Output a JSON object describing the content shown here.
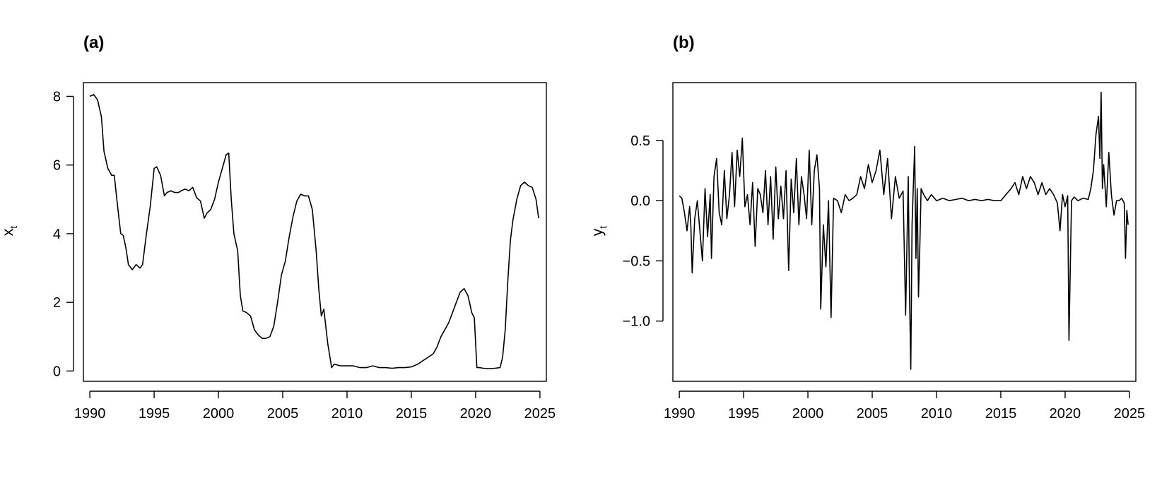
{
  "chart_data": [
    {
      "type": "line",
      "panel_label": "(a)",
      "ylabel": "x",
      "ylabel_subscript": "t",
      "xlim": [
        1989.5,
        2025.5
      ],
      "ylim": [
        -0.3,
        8.4
      ],
      "x_ticks": [
        1990,
        1995,
        2000,
        2005,
        2010,
        2015,
        2020,
        2025
      ],
      "y_ticks": [
        0,
        2,
        4,
        6,
        8
      ],
      "x_tick_labels": [
        "1990",
        "1995",
        "2000",
        "2005",
        "2010",
        "2015",
        "2020",
        "2025"
      ],
      "y_tick_labels": [
        "0",
        "2",
        "4",
        "6",
        "8"
      ],
      "grid": false,
      "line_color": "#000000",
      "series": [
        {
          "x": [
            1990.0,
            1990.3,
            1990.6,
            1990.9,
            1991.1,
            1991.4,
            1991.7,
            1991.9,
            1992.1,
            1992.4,
            1992.6,
            1992.8,
            1993.0,
            1993.3,
            1993.6,
            1993.9,
            1994.1,
            1994.4,
            1994.7,
            1995.0,
            1995.2,
            1995.5,
            1995.8,
            1996.0,
            1996.3,
            1996.6,
            1996.9,
            1997.1,
            1997.4,
            1997.7,
            1998.0,
            1998.3,
            1998.6,
            1998.9,
            1999.1,
            1999.4,
            1999.7,
            2000.0,
            2000.3,
            2000.6,
            2000.8,
            2001.0,
            2001.2,
            2001.5,
            2001.7,
            2001.9,
            2002.2,
            2002.5,
            2002.8,
            2003.1,
            2003.4,
            2003.7,
            2004.0,
            2004.3,
            2004.6,
            2004.9,
            2005.2,
            2005.5,
            2005.8,
            2006.1,
            2006.4,
            2006.7,
            2007.0,
            2007.3,
            2007.6,
            2007.8,
            2008.0,
            2008.2,
            2008.5,
            2008.8,
            2009.0,
            2009.5,
            2010.0,
            2010.5,
            2011.0,
            2011.5,
            2012.0,
            2012.5,
            2013.0,
            2013.5,
            2014.0,
            2014.5,
            2015.0,
            2015.5,
            2015.9,
            2016.3,
            2016.7,
            2017.0,
            2017.3,
            2017.6,
            2017.9,
            2018.2,
            2018.5,
            2018.8,
            2019.1,
            2019.4,
            2019.7,
            2019.9,
            2020.1,
            2020.3,
            2020.6,
            2021.0,
            2021.5,
            2021.9,
            2022.1,
            2022.3,
            2022.5,
            2022.7,
            2022.9,
            2023.2,
            2023.5,
            2023.8,
            2024.1,
            2024.4,
            2024.7,
            2024.9
          ],
          "y": [
            8.0,
            8.05,
            7.9,
            7.4,
            6.4,
            5.9,
            5.7,
            5.7,
            5.0,
            4.0,
            3.95,
            3.6,
            3.1,
            2.95,
            3.1,
            3.0,
            3.1,
            4.0,
            4.8,
            5.9,
            5.95,
            5.7,
            5.1,
            5.2,
            5.25,
            5.2,
            5.2,
            5.25,
            5.3,
            5.25,
            5.35,
            5.05,
            4.95,
            4.45,
            4.6,
            4.7,
            5.0,
            5.5,
            5.9,
            6.3,
            6.35,
            5.0,
            4.0,
            3.5,
            2.2,
            1.75,
            1.7,
            1.6,
            1.2,
            1.05,
            0.95,
            0.95,
            1.0,
            1.3,
            2.0,
            2.8,
            3.2,
            3.9,
            4.5,
            4.95,
            5.15,
            5.1,
            5.1,
            4.7,
            3.5,
            2.4,
            1.6,
            1.8,
            0.8,
            0.1,
            0.2,
            0.15,
            0.15,
            0.15,
            0.1,
            0.1,
            0.15,
            0.1,
            0.1,
            0.08,
            0.1,
            0.1,
            0.12,
            0.2,
            0.3,
            0.4,
            0.5,
            0.7,
            1.0,
            1.2,
            1.4,
            1.7,
            2.0,
            2.3,
            2.4,
            2.2,
            1.7,
            1.55,
            0.1,
            0.1,
            0.08,
            0.07,
            0.08,
            0.1,
            0.4,
            1.2,
            2.6,
            3.8,
            4.4,
            5.0,
            5.4,
            5.5,
            5.4,
            5.35,
            5.0,
            4.45
          ]
        }
      ]
    },
    {
      "type": "line",
      "panel_label": "(b)",
      "ylabel": "y",
      "ylabel_subscript": "t",
      "xlim": [
        1989.5,
        2025.5
      ],
      "ylim": [
        -1.5,
        0.98
      ],
      "x_ticks": [
        1990,
        1995,
        2000,
        2005,
        2010,
        2015,
        2020,
        2025
      ],
      "y_ticks": [
        -1.0,
        -0.5,
        0.0,
        0.5
      ],
      "x_tick_labels": [
        "1990",
        "1995",
        "2000",
        "2005",
        "2010",
        "2015",
        "2020",
        "2025"
      ],
      "y_tick_labels": [
        "−1.0",
        "−0.5",
        "0.0",
        "0.5"
      ],
      "grid": false,
      "line_color": "#000000",
      "series": [
        {
          "x": [
            1990.0,
            1990.2,
            1990.4,
            1990.6,
            1990.8,
            1990.9,
            1991.0,
            1991.2,
            1991.4,
            1991.6,
            1991.8,
            1992.0,
            1992.2,
            1992.4,
            1992.5,
            1992.7,
            1992.9,
            1993.1,
            1993.3,
            1993.5,
            1993.7,
            1993.9,
            1994.1,
            1994.3,
            1994.5,
            1994.7,
            1994.9,
            1995.1,
            1995.3,
            1995.5,
            1995.7,
            1995.9,
            1996.1,
            1996.3,
            1996.5,
            1996.7,
            1996.9,
            1997.1,
            1997.3,
            1997.5,
            1997.7,
            1997.9,
            1998.1,
            1998.3,
            1998.5,
            1998.7,
            1998.9,
            1999.1,
            1999.3,
            1999.5,
            1999.7,
            1999.9,
            2000.1,
            2000.3,
            2000.5,
            2000.7,
            2000.9,
            2001.0,
            2001.2,
            2001.4,
            2001.6,
            2001.8,
            2002.0,
            2002.3,
            2002.6,
            2002.9,
            2003.2,
            2003.5,
            2003.8,
            2004.1,
            2004.4,
            2004.7,
            2005.0,
            2005.3,
            2005.6,
            2005.9,
            2006.2,
            2006.5,
            2006.8,
            2007.1,
            2007.4,
            2007.6,
            2007.8,
            2007.9,
            2008.0,
            2008.1,
            2008.3,
            2008.4,
            2008.5,
            2008.6,
            2008.7,
            2008.8,
            2009.0,
            2009.3,
            2009.6,
            2010.0,
            2010.5,
            2011.0,
            2011.5,
            2012.0,
            2012.5,
            2013.0,
            2013.5,
            2014.0,
            2014.5,
            2015.0,
            2015.4,
            2015.8,
            2016.1,
            2016.4,
            2016.7,
            2017.0,
            2017.3,
            2017.6,
            2017.9,
            2018.2,
            2018.5,
            2018.8,
            2019.1,
            2019.4,
            2019.6,
            2019.8,
            2020.0,
            2020.2,
            2020.3,
            2020.5,
            2020.7,
            2021.0,
            2021.4,
            2021.8,
            2022.0,
            2022.2,
            2022.4,
            2022.6,
            2022.7,
            2022.8,
            2022.9,
            2023.0,
            2023.2,
            2023.4,
            2023.6,
            2023.8,
            2024.0,
            2024.2,
            2024.4,
            2024.6,
            2024.7,
            2024.8,
            2024.9
          ],
          "y": [
            0.04,
            0.02,
            -0.1,
            -0.25,
            -0.05,
            -0.22,
            -0.6,
            -0.15,
            0.0,
            -0.25,
            -0.5,
            0.1,
            -0.3,
            0.05,
            -0.48,
            0.2,
            0.35,
            -0.1,
            -0.2,
            0.25,
            -0.15,
            0.05,
            0.4,
            -0.05,
            0.42,
            0.2,
            0.52,
            -0.05,
            0.05,
            -0.2,
            0.15,
            -0.38,
            0.1,
            0.05,
            -0.1,
            0.25,
            -0.2,
            0.2,
            -0.32,
            0.28,
            -0.15,
            0.12,
            -0.15,
            0.25,
            -0.58,
            0.18,
            -0.1,
            0.35,
            -0.2,
            0.2,
            0.05,
            -0.15,
            0.42,
            -0.2,
            0.25,
            0.38,
            0.1,
            -0.9,
            -0.2,
            -0.55,
            0.0,
            -0.97,
            0.02,
            0.0,
            -0.1,
            0.05,
            0.0,
            0.02,
            0.05,
            0.2,
            0.1,
            0.3,
            0.15,
            0.25,
            0.42,
            0.05,
            0.35,
            -0.15,
            0.2,
            0.02,
            0.08,
            -0.95,
            0.2,
            -0.78,
            -1.4,
            -0.2,
            0.45,
            -0.48,
            0.1,
            -0.8,
            -0.4,
            0.1,
            0.05,
            0.0,
            0.05,
            0.0,
            0.02,
            0.0,
            0.01,
            0.02,
            0.0,
            0.01,
            0.0,
            0.01,
            0.0,
            0.0,
            0.05,
            0.1,
            0.15,
            0.05,
            0.2,
            0.1,
            0.2,
            0.15,
            0.05,
            0.15,
            0.05,
            0.1,
            0.05,
            -0.02,
            -0.25,
            0.05,
            -0.05,
            0.04,
            -1.16,
            0.0,
            0.03,
            0.0,
            0.02,
            0.01,
            0.1,
            0.25,
            0.55,
            0.7,
            0.35,
            0.9,
            0.1,
            0.3,
            -0.05,
            0.4,
            0.05,
            -0.12,
            0.0,
            0.0,
            0.02,
            -0.02,
            -0.48,
            -0.08,
            -0.2
          ]
        }
      ]
    }
  ]
}
